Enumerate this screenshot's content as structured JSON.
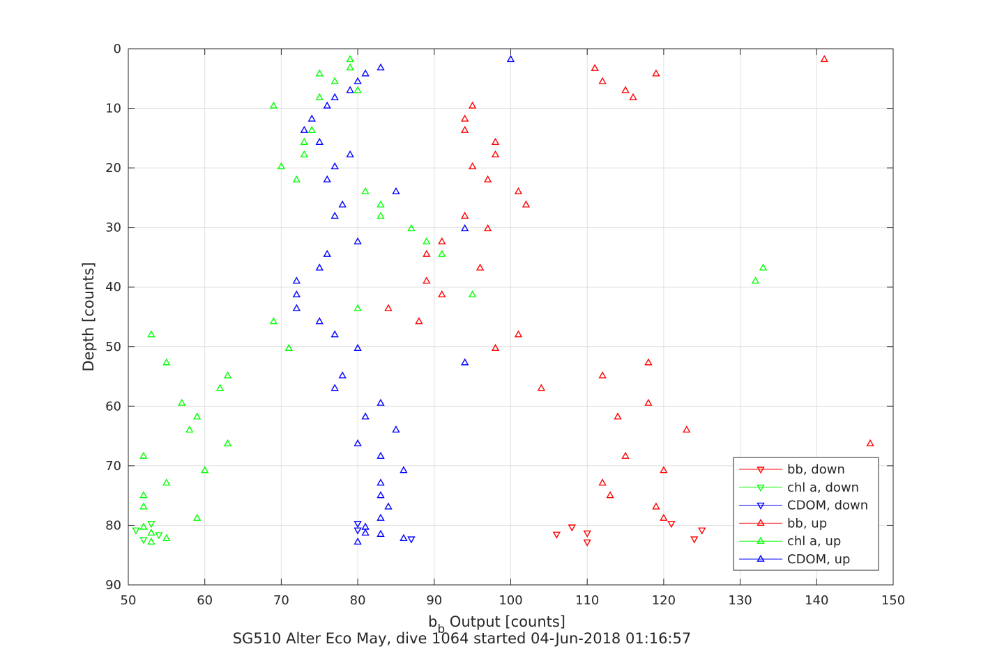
{
  "chart_data": {
    "type": "scatter",
    "title": "",
    "xlabel": "b",
    "xlabel_sub": "b",
    "xlabel_rest": " Output [counts]",
    "subtitle": "SG510 Alter Eco May, dive 1064 started 04-Jun-2018 01:16:57",
    "ylabel": "Depth [counts]",
    "xlim": [
      50,
      150
    ],
    "ylim": [
      0,
      90
    ],
    "y_reversed": true,
    "grid": true,
    "legend_position": "bottom-right",
    "xticks": [
      "50",
      "60",
      "70",
      "80",
      "90",
      "100",
      "110",
      "120",
      "130",
      "140",
      "150"
    ],
    "yticks": [
      "0",
      "10",
      "20",
      "30",
      "40",
      "50",
      "60",
      "70",
      "80",
      "90"
    ],
    "series": [
      {
        "name": "bb, down",
        "color": "#ff0000",
        "marker": "triangle-down",
        "points": [
          [
            125,
            80.8
          ],
          [
            121,
            79.7
          ],
          [
            124,
            82.3
          ],
          [
            106,
            81.5
          ],
          [
            110,
            81.3
          ],
          [
            110,
            82.8
          ],
          [
            108,
            80.3
          ]
        ]
      },
      {
        "name": "chl a, down",
        "color": "#00ff00",
        "marker": "triangle-down",
        "points": [
          [
            51,
            80.8
          ],
          [
            53,
            79.7
          ],
          [
            54,
            81.6
          ],
          [
            52,
            82.4
          ]
        ]
      },
      {
        "name": "CDOM, down",
        "color": "#0000ff",
        "marker": "triangle-down",
        "points": [
          [
            80,
            79.7
          ],
          [
            80,
            80.8
          ],
          [
            87,
            82.3
          ]
        ]
      },
      {
        "name": "bb, up",
        "color": "#ff0000",
        "marker": "triangle-up",
        "points": [
          [
            141,
            1.8
          ],
          [
            111,
            3.3
          ],
          [
            119,
            4.2
          ],
          [
            112,
            5.5
          ],
          [
            115,
            7.0
          ],
          [
            116,
            8.2
          ],
          [
            95,
            9.6
          ],
          [
            94,
            11.8
          ],
          [
            94,
            13.7
          ],
          [
            98,
            15.7
          ],
          [
            98,
            17.8
          ],
          [
            95,
            19.8
          ],
          [
            97,
            22.0
          ],
          [
            101,
            24.0
          ],
          [
            102,
            26.2
          ],
          [
            94,
            28.1
          ],
          [
            97,
            30.2
          ],
          [
            91,
            32.4
          ],
          [
            89,
            34.5
          ],
          [
            96,
            36.8
          ],
          [
            89,
            39.0
          ],
          [
            91,
            41.3
          ],
          [
            84,
            43.6
          ],
          [
            88,
            45.8
          ],
          [
            101,
            48.0
          ],
          [
            98,
            50.3
          ],
          [
            118,
            52.7
          ],
          [
            112,
            54.9
          ],
          [
            104,
            57.0
          ],
          [
            118,
            59.5
          ],
          [
            114,
            61.8
          ],
          [
            123,
            64.0
          ],
          [
            147,
            66.3
          ],
          [
            115,
            68.4
          ],
          [
            120,
            70.8
          ],
          [
            112,
            72.9
          ],
          [
            113,
            75.0
          ],
          [
            119,
            76.9
          ],
          [
            120,
            78.8
          ]
        ]
      },
      {
        "name": "chl a, up",
        "color": "#00ff00",
        "marker": "triangle-up",
        "points": [
          [
            79,
            1.8
          ],
          [
            79,
            3.2
          ],
          [
            75,
            4.2
          ],
          [
            77,
            5.5
          ],
          [
            80,
            7.0
          ],
          [
            75,
            8.2
          ],
          [
            69,
            9.6
          ],
          [
            74,
            13.7
          ],
          [
            73,
            15.7
          ],
          [
            73,
            17.8
          ],
          [
            70,
            19.8
          ],
          [
            72,
            22.0
          ],
          [
            81,
            24.0
          ],
          [
            83,
            26.2
          ],
          [
            83,
            28.1
          ],
          [
            87,
            30.2
          ],
          [
            89,
            32.4
          ],
          [
            91,
            34.5
          ],
          [
            133,
            36.8
          ],
          [
            132,
            39.0
          ],
          [
            95,
            41.3
          ],
          [
            80,
            43.6
          ],
          [
            69,
            45.8
          ],
          [
            53,
            48.0
          ],
          [
            71,
            50.3
          ],
          [
            55,
            52.7
          ],
          [
            63,
            54.9
          ],
          [
            62,
            57.0
          ],
          [
            57,
            59.5
          ],
          [
            59,
            61.8
          ],
          [
            58,
            64.0
          ],
          [
            63,
            66.3
          ],
          [
            52,
            68.4
          ],
          [
            60,
            70.8
          ],
          [
            55,
            72.9
          ],
          [
            52,
            75.0
          ],
          [
            52,
            76.9
          ],
          [
            59,
            78.8
          ],
          [
            52,
            80.3
          ],
          [
            53,
            81.3
          ],
          [
            53,
            82.8
          ],
          [
            55,
            82.2
          ]
        ]
      },
      {
        "name": "CDOM, up",
        "color": "#0000ff",
        "marker": "triangle-up",
        "points": [
          [
            100,
            1.8
          ],
          [
            83,
            3.2
          ],
          [
            81,
            4.2
          ],
          [
            80,
            5.5
          ],
          [
            79,
            7.0
          ],
          [
            77,
            8.2
          ],
          [
            76,
            9.6
          ],
          [
            74,
            11.8
          ],
          [
            73,
            13.7
          ],
          [
            75,
            15.7
          ],
          [
            79,
            17.8
          ],
          [
            77,
            19.8
          ],
          [
            76,
            22.0
          ],
          [
            85,
            24.0
          ],
          [
            78,
            26.2
          ],
          [
            77,
            28.1
          ],
          [
            94,
            30.2
          ],
          [
            80,
            32.4
          ],
          [
            76,
            34.5
          ],
          [
            75,
            36.8
          ],
          [
            72,
            39.0
          ],
          [
            72,
            41.3
          ],
          [
            72,
            43.6
          ],
          [
            75,
            45.8
          ],
          [
            77,
            48.0
          ],
          [
            80,
            50.3
          ],
          [
            94,
            52.7
          ],
          [
            78,
            54.9
          ],
          [
            77,
            57.0
          ],
          [
            83,
            59.5
          ],
          [
            81,
            61.8
          ],
          [
            85,
            64.0
          ],
          [
            80,
            66.3
          ],
          [
            83,
            68.4
          ],
          [
            86,
            70.8
          ],
          [
            83,
            72.9
          ],
          [
            83,
            75.0
          ],
          [
            84,
            76.9
          ],
          [
            83,
            78.8
          ],
          [
            81,
            80.3
          ],
          [
            81,
            81.3
          ],
          [
            83,
            81.5
          ],
          [
            86,
            82.2
          ],
          [
            80,
            82.8
          ]
        ]
      }
    ]
  }
}
